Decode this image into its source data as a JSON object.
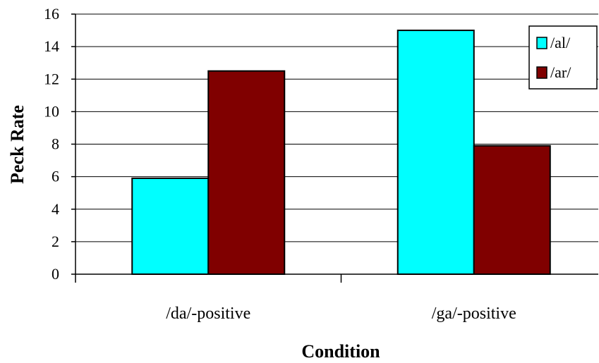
{
  "chart_data": {
    "type": "bar",
    "title": "",
    "xlabel": "Condition",
    "ylabel": "Peck Rate",
    "categories": [
      "/da/-positive",
      "/ga/-positive"
    ],
    "series": [
      {
        "name": "/al/",
        "values": [
          5.9,
          15.0
        ],
        "color": "#00FFFF"
      },
      {
        "name": "/ar/",
        "values": [
          12.5,
          7.9
        ],
        "color": "#800000"
      }
    ],
    "ylim": [
      0,
      16
    ],
    "yticks": [
      0,
      2,
      4,
      6,
      8,
      10,
      12,
      14,
      16
    ],
    "grid": true,
    "legend_position": "top-right"
  }
}
